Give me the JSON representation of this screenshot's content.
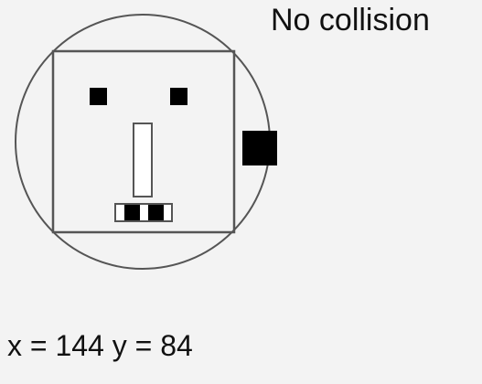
{
  "status": {
    "text": "No collision"
  },
  "coordinates": {
    "x_label": "x =",
    "x_value": "144",
    "y_label": "y =",
    "y_value": "84"
  },
  "colors": {
    "background": "#f3f3f3",
    "stroke": "#555555",
    "fill_dark": "#000000",
    "fill_light": "#ffffff"
  }
}
